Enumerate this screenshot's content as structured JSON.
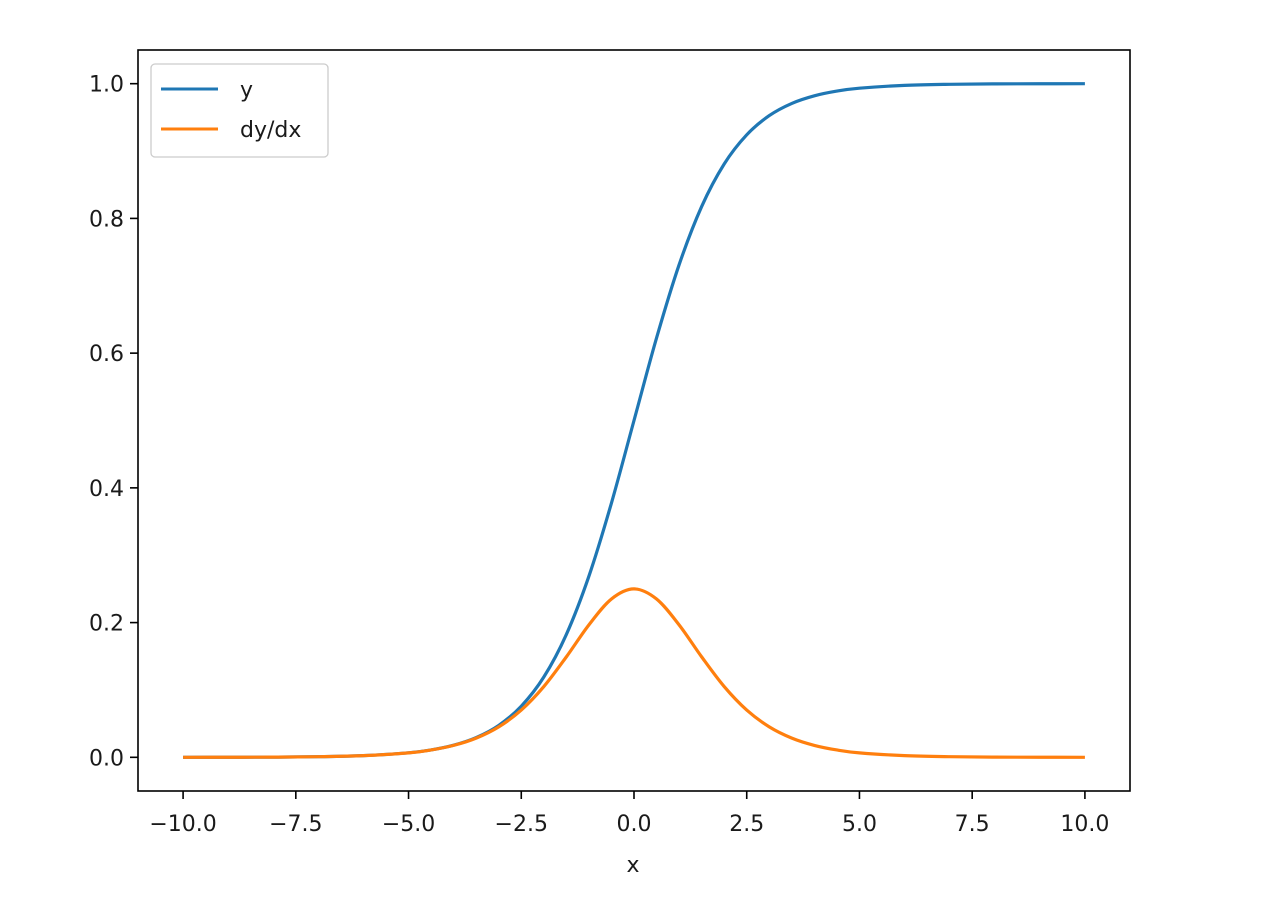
{
  "chart_data": {
    "type": "line",
    "title": "",
    "xlabel": "x",
    "ylabel": "",
    "xlim": [
      -11.0,
      11.0
    ],
    "ylim": [
      -0.05,
      1.05
    ],
    "xticks": [
      -10.0,
      -7.5,
      -5.0,
      -2.5,
      0.0,
      2.5,
      5.0,
      7.5,
      10.0
    ],
    "xtick_labels": [
      "−10.0",
      "−7.5",
      "−5.0",
      "−2.5",
      "0.0",
      "2.5",
      "5.0",
      "7.5",
      "10.0"
    ],
    "yticks": [
      0.0,
      0.2,
      0.4,
      0.6,
      0.8,
      1.0
    ],
    "ytick_labels": [
      "0.0",
      "0.2",
      "0.4",
      "0.6",
      "0.8",
      "1.0"
    ],
    "grid": false,
    "legend_position": "top-left",
    "x": [
      -10,
      -9,
      -8,
      -7,
      -6,
      -5,
      -4.5,
      -4,
      -3.5,
      -3,
      -2.5,
      -2,
      -1.5,
      -1,
      -0.5,
      0,
      0.5,
      1,
      1.5,
      2,
      2.5,
      3,
      3.5,
      4,
      4.5,
      5,
      6,
      7,
      8,
      9,
      10
    ],
    "series": [
      {
        "name": "y",
        "color": "#1f77b4",
        "values": [
          0.0,
          0.0001,
          0.0003,
          0.0009,
          0.0025,
          0.0067,
          0.011,
          0.018,
          0.0293,
          0.0474,
          0.0759,
          0.1192,
          0.1824,
          0.2689,
          0.3775,
          0.5,
          0.6225,
          0.7311,
          0.8176,
          0.8808,
          0.9241,
          0.9526,
          0.9707,
          0.982,
          0.989,
          0.9933,
          0.9975,
          0.9991,
          0.9997,
          0.9999,
          1.0
        ]
      },
      {
        "name": "dy/dx",
        "color": "#ff7f0e",
        "values": [
          0.0,
          0.0001,
          0.0003,
          0.0009,
          0.0025,
          0.0066,
          0.0109,
          0.0177,
          0.0285,
          0.0452,
          0.0701,
          0.105,
          0.1491,
          0.1966,
          0.235,
          0.25,
          0.235,
          0.1966,
          0.1491,
          0.105,
          0.0701,
          0.0452,
          0.0285,
          0.0177,
          0.0109,
          0.0066,
          0.0025,
          0.0009,
          0.0003,
          0.0001,
          0.0
        ]
      }
    ]
  }
}
